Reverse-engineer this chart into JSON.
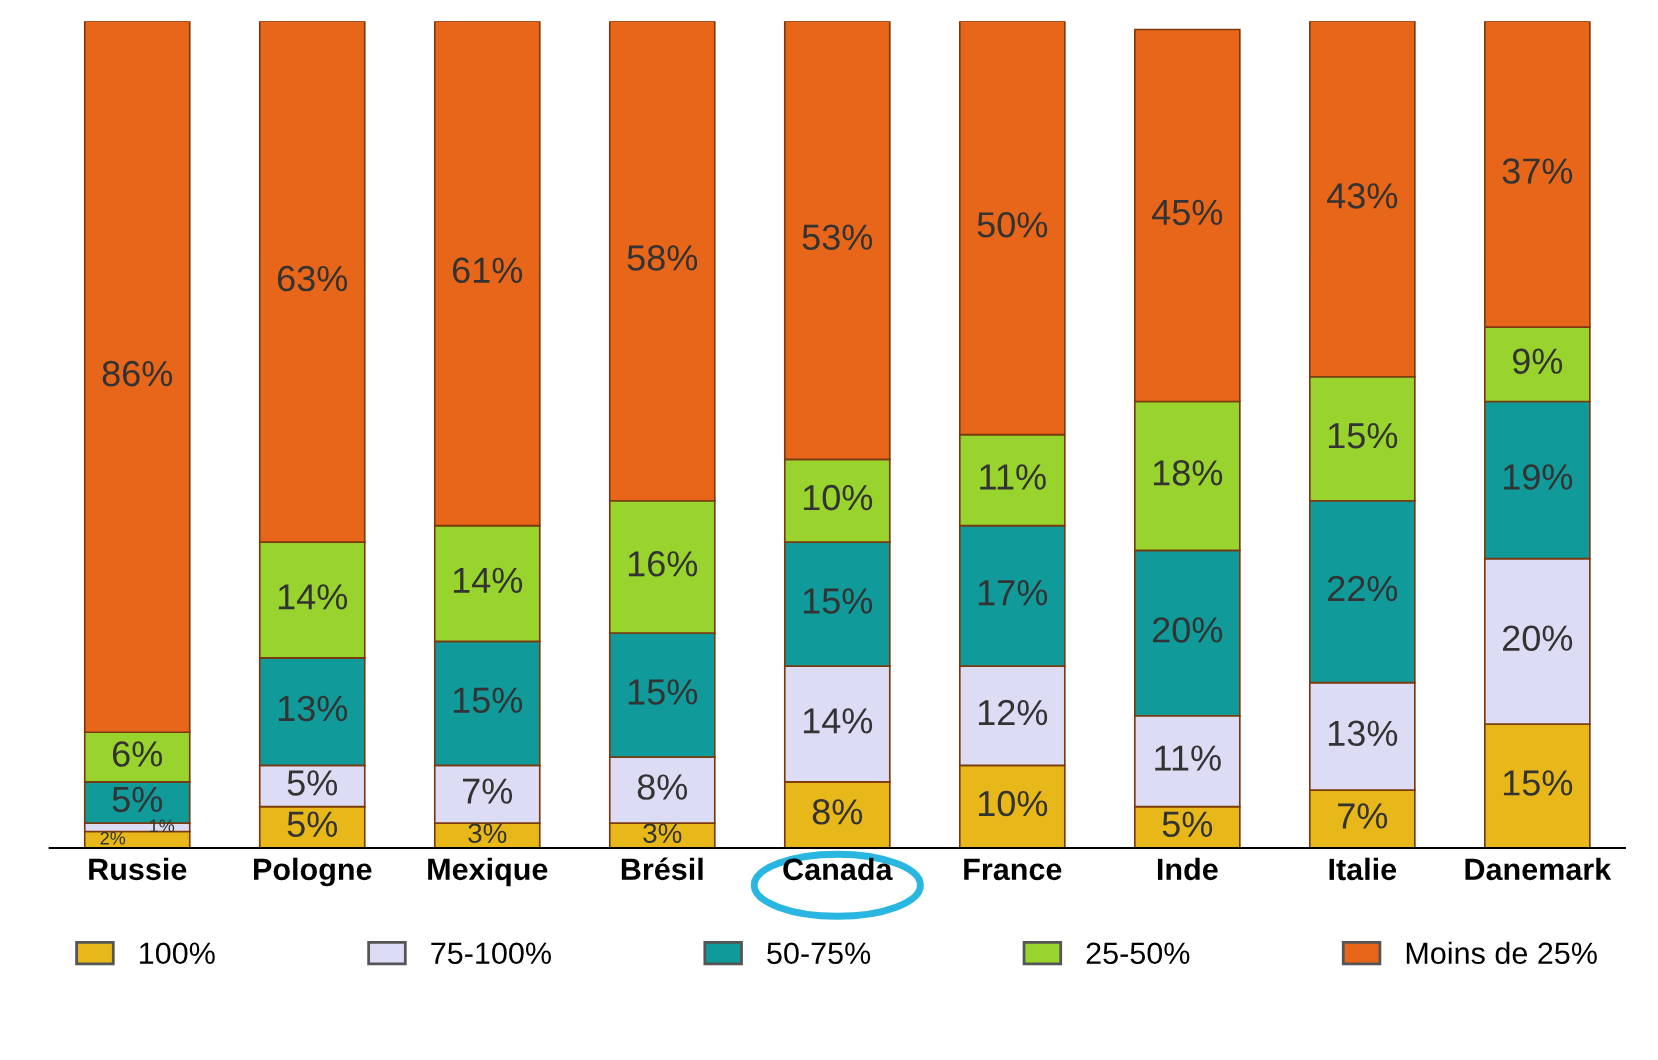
{
  "chart_data": {
    "type": "bar",
    "stacked": true,
    "legend": "bottom",
    "grid": false,
    "tick_labels": "x",
    "categories": [
      "Russie",
      "Pologne",
      "Mexique",
      "Brésil",
      "Canada",
      "France",
      "Inde",
      "Italie",
      "Danemark"
    ],
    "series": [
      {
        "name": "100%",
        "color": "#e8b81a",
        "values": [
          2,
          5,
          3,
          3,
          8,
          10,
          5,
          7,
          15
        ],
        "value_labels": [
          "2%",
          "5%",
          "3%",
          "3%",
          "8%",
          "10%",
          "5%",
          "7%",
          "15%"
        ]
      },
      {
        "name": "75-100%",
        "color": "#dcdcf4",
        "values": [
          1,
          5,
          7,
          8,
          14,
          12,
          11,
          13,
          20
        ],
        "value_labels": [
          "1%",
          "5%",
          "7%",
          "8%",
          "14%",
          "12%",
          "11%",
          "13%",
          "20%"
        ]
      },
      {
        "name": "50-75%",
        "color": "#119a9a",
        "values": [
          5,
          13,
          15,
          15,
          15,
          17,
          20,
          22,
          19
        ],
        "value_labels": [
          "5%",
          "13%",
          "15%",
          "15%",
          "15%",
          "17%",
          "20%",
          "22%",
          "19%"
        ]
      },
      {
        "name": "25-50%",
        "color": "#99d42e",
        "values": [
          6,
          14,
          14,
          16,
          10,
          11,
          18,
          15,
          9
        ],
        "value_labels": [
          "6%",
          "14%",
          "14%",
          "16%",
          "10%",
          "11%",
          "18%",
          "15%",
          "9%"
        ]
      },
      {
        "name": "Moins de 25%",
        "color": "#e8661a",
        "values": [
          86,
          63,
          61,
          58,
          53,
          50,
          45,
          43,
          37
        ],
        "value_labels": [
          "86%",
          "63%",
          "61%",
          "58%",
          "53%",
          "50%",
          "45%",
          "43%",
          "37%"
        ]
      }
    ]
  }
}
